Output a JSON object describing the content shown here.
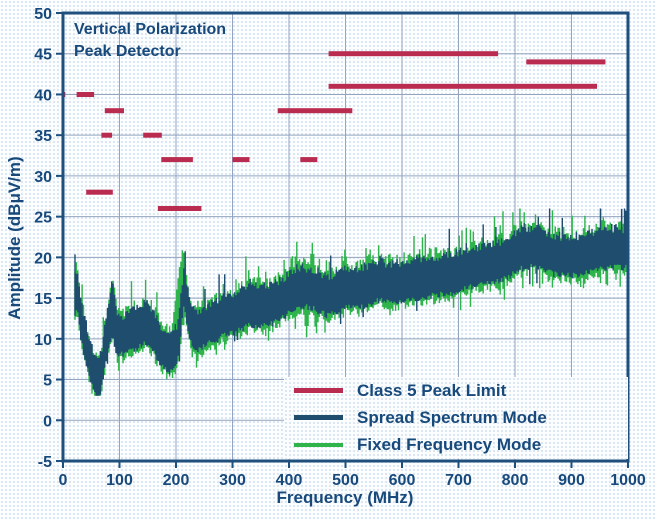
{
  "title_lines": [
    "Vertical Polarization",
    "Peak Detector"
  ],
  "legend": {
    "items": [
      {
        "label": "Class 5 Peak Limit",
        "color": "#b92b4f",
        "swatch_height": 5
      },
      {
        "label": "Spread Spectrum Mode",
        "color": "#1f4d6e",
        "swatch_height": 5
      },
      {
        "label": "Fixed Frequency Mode",
        "color": "#2fb44b",
        "swatch_height": 4
      }
    ]
  },
  "colors": {
    "background": "#fbfdff",
    "background_dots": "#d5e2f1",
    "axis_text": "#17497b",
    "plot_border": "#1e4f7d",
    "gridline": "#95a5bf",
    "limit_red": "#b92b4f",
    "trace_navy": "#1f4d6e",
    "trace_green": "#2fb44b"
  },
  "chart_data": {
    "type": "line",
    "title": "Vertical Polarization Peak Detector",
    "xlabel": "Frequency (MHz)",
    "ylabel": "Amplitude (dBμV/m)",
    "xlim": [
      0,
      1000
    ],
    "ylim": [
      -5,
      50
    ],
    "x_ticks": [
      0,
      100,
      200,
      300,
      400,
      500,
      600,
      700,
      800,
      900,
      1000
    ],
    "y_ticks": [
      -5,
      0,
      5,
      10,
      15,
      20,
      25,
      30,
      35,
      40,
      45,
      50
    ],
    "grid": true,
    "legend_position": "lower right",
    "limit_series": {
      "name": "Class 5 Peak Limit",
      "color": "#b92b4f",
      "segments": [
        {
          "from": 0,
          "to": 4,
          "level": 40
        },
        {
          "from": 24,
          "to": 55,
          "level": 40
        },
        {
          "from": 41,
          "to": 88,
          "level": 28
        },
        {
          "from": 68,
          "to": 87,
          "level": 35
        },
        {
          "from": 74,
          "to": 108,
          "level": 38
        },
        {
          "from": 142,
          "to": 175,
          "level": 35
        },
        {
          "from": 168,
          "to": 245,
          "level": 26
        },
        {
          "from": 174,
          "to": 230,
          "level": 32
        },
        {
          "from": 300,
          "to": 330,
          "level": 32
        },
        {
          "from": 380,
          "to": 512,
          "level": 38
        },
        {
          "from": 420,
          "to": 450,
          "level": 32
        },
        {
          "from": 470,
          "to": 770,
          "level": 45
        },
        {
          "from": 470,
          "to": 945,
          "level": 41
        },
        {
          "from": 820,
          "to": 960,
          "level": 44
        }
      ]
    },
    "baseline_anchors": [
      [
        20,
        15.3
      ],
      [
        24,
        15.8
      ],
      [
        27,
        14.2
      ],
      [
        31,
        12.0
      ],
      [
        36,
        10.2
      ],
      [
        42,
        8.8
      ],
      [
        48,
        7.2
      ],
      [
        54,
        5.6
      ],
      [
        58,
        4.8
      ],
      [
        62,
        4.6
      ],
      [
        66,
        5.8
      ],
      [
        71,
        8.2
      ],
      [
        76,
        10.4
      ],
      [
        81,
        11.8
      ],
      [
        85,
        12.8
      ],
      [
        88,
        12.2
      ],
      [
        92,
        10.8
      ],
      [
        97,
        10.2
      ],
      [
        105,
        10.4
      ],
      [
        115,
        10.8
      ],
      [
        125,
        11.1
      ],
      [
        135,
        11.4
      ],
      [
        143,
        11.8
      ],
      [
        150,
        11.7
      ],
      [
        158,
        10.8
      ],
      [
        165,
        10.0
      ],
      [
        172,
        9.2
      ],
      [
        180,
        8.5
      ],
      [
        188,
        8.1
      ],
      [
        195,
        8.4
      ],
      [
        201,
        9.3
      ],
      [
        206,
        11.5
      ],
      [
        210,
        14.5
      ],
      [
        213,
        16.2
      ],
      [
        217,
        14.6
      ],
      [
        222,
        12.6
      ],
      [
        228,
        11.4
      ],
      [
        236,
        11.0
      ],
      [
        244,
        11.2
      ],
      [
        252,
        11.6
      ],
      [
        260,
        11.9
      ],
      [
        270,
        12.1
      ],
      [
        280,
        12.6
      ],
      [
        290,
        12.7
      ],
      [
        300,
        13.1
      ],
      [
        310,
        13.3
      ],
      [
        320,
        13.7
      ],
      [
        330,
        13.9
      ],
      [
        340,
        14.0
      ],
      [
        350,
        13.8
      ],
      [
        360,
        14.1
      ],
      [
        370,
        14.2
      ],
      [
        380,
        14.5
      ],
      [
        390,
        15.0
      ],
      [
        400,
        15.6
      ],
      [
        410,
        16.1
      ],
      [
        420,
        16.3
      ],
      [
        432,
        16.2
      ],
      [
        444,
        16.1
      ],
      [
        455,
        15.6
      ],
      [
        465,
        15.1
      ],
      [
        475,
        15.3
      ],
      [
        488,
        15.7
      ],
      [
        500,
        16.1
      ],
      [
        512,
        16.1
      ],
      [
        524,
        16.1
      ],
      [
        536,
        16.5
      ],
      [
        548,
        16.7
      ],
      [
        560,
        17.1
      ],
      [
        572,
        16.8
      ],
      [
        584,
        16.7
      ],
      [
        596,
        16.9
      ],
      [
        610,
        17.1
      ],
      [
        625,
        17.3
      ],
      [
        640,
        17.5
      ],
      [
        655,
        17.6
      ],
      [
        670,
        17.7
      ],
      [
        685,
        17.9
      ],
      [
        700,
        18.1
      ],
      [
        715,
        18.5
      ],
      [
        730,
        18.8
      ],
      [
        745,
        19.0
      ],
      [
        760,
        19.1
      ],
      [
        775,
        19.4
      ],
      [
        790,
        20.0
      ],
      [
        805,
        20.8
      ],
      [
        820,
        21.1
      ],
      [
        835,
        21.1
      ],
      [
        850,
        20.8
      ],
      [
        865,
        20.3
      ],
      [
        880,
        20.1
      ],
      [
        895,
        20.0
      ],
      [
        910,
        20.1
      ],
      [
        925,
        20.4
      ],
      [
        940,
        20.7
      ],
      [
        955,
        21.0
      ],
      [
        970,
        21.1
      ],
      [
        985,
        21.0
      ],
      [
        1000,
        21.1
      ]
    ],
    "f_start": 20,
    "f_end": 1000,
    "series": [
      {
        "name": "Spread Spectrum Mode",
        "color": "#1f4d6e",
        "offset": 0,
        "band_halfwidth": 1.9,
        "noise": 1.15,
        "spike_prob": 0.07,
        "seed": 7,
        "spikes": [
          [
            86,
            17.6
          ],
          [
            213,
            18.2
          ],
          [
            560,
            20.2
          ]
        ],
        "dips": []
      },
      {
        "name": "Fixed Frequency Mode",
        "color": "#2fb44b",
        "offset": -0.1,
        "band_halfwidth": 2.15,
        "noise": 1.65,
        "spike_prob": 0.12,
        "seed": 13,
        "spikes": [
          [
            88,
            17.4
          ],
          [
            146,
            15.3
          ],
          [
            205,
            18.8
          ],
          [
            211,
            21.4
          ],
          [
            283,
            17.0
          ],
          [
            322,
            16.6
          ],
          [
            345,
            18.9
          ],
          [
            358,
            18.5
          ],
          [
            404,
            20.7
          ],
          [
            412,
            21.2
          ],
          [
            426,
            20.5
          ],
          [
            440,
            21.8
          ],
          [
            452,
            20.1
          ],
          [
            500,
            20.1
          ],
          [
            532,
            18.7
          ],
          [
            562,
            19.8
          ],
          [
            845,
            24.2
          ],
          [
            872,
            22.7
          ],
          [
            940,
            23.3
          ],
          [
            965,
            24.0
          ],
          [
            978,
            23.5
          ]
        ],
        "dips": [
          [
            60,
            3.4
          ],
          [
            238,
            7.0
          ],
          [
            246,
            7.2
          ],
          [
            430,
            10.2
          ],
          [
            447,
            10.4
          ],
          [
            463,
            11.2
          ]
        ]
      }
    ]
  }
}
